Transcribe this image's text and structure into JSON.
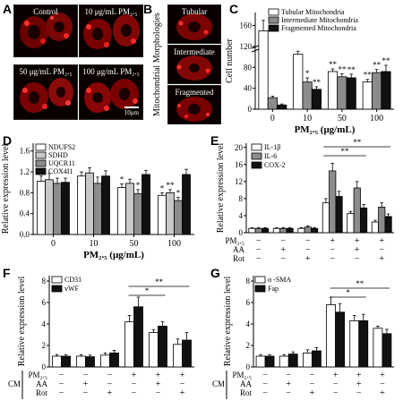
{
  "panel_letters": {
    "a": "A",
    "b": "B",
    "c": "C",
    "d": "D",
    "e": "E",
    "f": "F",
    "g": "G"
  },
  "panel_a": {
    "images": [
      "Control",
      "10 μg/mL PM₂.₅",
      "50 μg/mL PM₂.₅",
      "100 μg/mL PM₂.₅"
    ],
    "scale_bar": "10μm"
  },
  "panel_b": {
    "vertical_title": "Mitochondrial Morphologies",
    "images": [
      "Tubular",
      "Intermediate",
      "Fragmented"
    ]
  },
  "colors": {
    "white": "#ffffff",
    "gray": "#8c8c8c",
    "lightgray": "#c8c8c8",
    "black": "#111111"
  },
  "chart_data": [
    {
      "id": "C",
      "type": "bar",
      "categories": [
        "0",
        "10",
        "50",
        "100"
      ],
      "series": [
        {
          "name": "Tubular Mitochondria",
          "color": "#ffffff",
          "values": [
            150,
            105,
            72,
            52
          ],
          "errors": [
            20,
            6,
            5,
            5
          ]
        },
        {
          "name": "Intermediate Mitochondria",
          "color": "#8c8c8c",
          "values": [
            22,
            52,
            62,
            70
          ],
          "errors": [
            3,
            8,
            6,
            6
          ]
        },
        {
          "name": "Fragmented Mitochondria",
          "color": "#111111",
          "values": [
            8,
            38,
            60,
            72
          ],
          "errors": [
            2,
            5,
            7,
            12
          ]
        }
      ],
      "ylabel": "Cell number",
      "xlabel": "PM₂.₅ (μg/mL)",
      "yticks": [
        0,
        40,
        80,
        120,
        160
      ],
      "ylim": [
        0,
        185
      ],
      "legend": "top-right",
      "annotations": [
        "*",
        "**",
        "**",
        "**",
        "**",
        "**",
        "**",
        "**",
        "**"
      ]
    },
    {
      "id": "D",
      "type": "bar",
      "categories": [
        "0",
        "10",
        "50",
        "100"
      ],
      "series": [
        {
          "name": "NDUFS2",
          "color": "#ffffff",
          "values": [
            1.02,
            1.12,
            0.9,
            0.75
          ],
          "errors": [
            0.1,
            0.08,
            0.07,
            0.05
          ]
        },
        {
          "name": "SDHD",
          "color": "#c8c8c8",
          "values": [
            1.05,
            1.18,
            0.98,
            0.8
          ],
          "errors": [
            0.12,
            0.1,
            0.08,
            0.06
          ]
        },
        {
          "name": "UQCR11",
          "color": "#8c8c8c",
          "values": [
            0.98,
            0.98,
            0.78,
            0.65
          ],
          "errors": [
            0.1,
            0.12,
            0.08,
            0.06
          ]
        },
        {
          "name": "COX4I1",
          "color": "#111111",
          "values": [
            1.0,
            1.12,
            1.15,
            1.15
          ],
          "errors": [
            0.08,
            0.1,
            0.08,
            0.1
          ]
        }
      ],
      "ylabel": "Relative expression level",
      "xlabel": "PM₂.₅ (μg/mL)",
      "yticks": [
        "0.0",
        "0.4",
        "0.8",
        "1.2",
        "1.6"
      ],
      "ylim": [
        0,
        1.75
      ],
      "legend": "top-left",
      "annotations": [
        "*",
        "*",
        "*",
        "**",
        "*",
        "**"
      ]
    },
    {
      "id": "E",
      "type": "bar",
      "groups": 6,
      "series": [
        {
          "name": "IL-1β",
          "color": "#ffffff",
          "values": [
            1,
            1,
            1,
            7,
            4.5,
            2.5
          ],
          "errors": [
            0.2,
            0.2,
            0.2,
            1,
            0.5,
            0.4
          ]
        },
        {
          "name": "IL-6",
          "color": "#8c8c8c",
          "values": [
            1,
            1,
            1.3,
            14.5,
            10.5,
            6
          ],
          "errors": [
            0.2,
            0.2,
            0.3,
            1.8,
            1.5,
            1
          ]
        },
        {
          "name": "COX-2",
          "color": "#111111",
          "values": [
            1,
            1,
            1,
            8.5,
            5.8,
            3.8
          ],
          "errors": [
            0.2,
            0.2,
            0.2,
            1.2,
            0.8,
            0.6
          ]
        }
      ],
      "ylabel": "Relative expression level",
      "yticks": [
        0,
        4,
        8,
        12,
        16,
        20
      ],
      "ylim": [
        0,
        21
      ],
      "legend": "top-left",
      "rows": [
        {
          "label": "PM₂.₅",
          "values": [
            "−",
            "−",
            "−",
            "+",
            "+",
            "+"
          ]
        },
        {
          "label": "AA",
          "values": [
            "−",
            "+",
            "−",
            "−",
            "+",
            "−"
          ]
        },
        {
          "label": "Rot",
          "values": [
            "−",
            "−",
            "+",
            "−",
            "−",
            "+"
          ]
        }
      ],
      "annotations": [
        "**",
        "**"
      ]
    },
    {
      "id": "F",
      "type": "bar",
      "groups": 6,
      "series": [
        {
          "name": "CD31",
          "color": "#ffffff",
          "values": [
            1,
            1,
            1.1,
            4.2,
            3.2,
            2.1
          ],
          "errors": [
            0.15,
            0.15,
            0.2,
            0.6,
            0.25,
            0.5
          ]
        },
        {
          "name": "vWF",
          "color": "#111111",
          "values": [
            1,
            0.95,
            1.3,
            5.6,
            3.8,
            2.5
          ],
          "errors": [
            0.15,
            0.15,
            0.25,
            0.9,
            0.4,
            0.7
          ]
        }
      ],
      "ylabel": "Relative expression level",
      "yticks": [
        0,
        2,
        4,
        6,
        8
      ],
      "ylim": [
        0,
        8.5
      ],
      "legend": "top-left",
      "rows": [
        {
          "label": "PM₂.₅",
          "values": [
            "−",
            "−",
            "−",
            "+",
            "+",
            "+"
          ]
        },
        {
          "label": "AA",
          "values": [
            "−",
            "+",
            "−",
            "−",
            "+",
            "−"
          ]
        },
        {
          "label": "Rot",
          "values": [
            "−",
            "−",
            "+",
            "−",
            "−",
            "+"
          ]
        }
      ],
      "row_prefix": "CM",
      "annotations": [
        "*",
        "**"
      ]
    },
    {
      "id": "G",
      "type": "bar",
      "groups": 6,
      "series": [
        {
          "name": "α -SMA",
          "color": "#ffffff",
          "values": [
            1,
            1,
            1.3,
            5.8,
            4.3,
            3.6
          ],
          "errors": [
            0.15,
            0.15,
            0.3,
            0.7,
            0.5,
            0.2
          ]
        },
        {
          "name": "Fap",
          "color": "#111111",
          "values": [
            1,
            1.2,
            1.5,
            5.1,
            4.3,
            3.1
          ],
          "errors": [
            0.15,
            0.2,
            0.3,
            0.8,
            0.6,
            0.4
          ]
        }
      ],
      "ylabel": "Relative expression level",
      "yticks": [
        0,
        2,
        4,
        6,
        8
      ],
      "ylim": [
        0,
        8.5
      ],
      "legend": "top-left",
      "rows": [
        {
          "label": "PM₂.₅",
          "values": [
            "−",
            "−",
            "−",
            "+",
            "+",
            "+"
          ]
        },
        {
          "label": "AA",
          "values": [
            "−",
            "+",
            "−",
            "−",
            "+",
            "−"
          ]
        },
        {
          "label": "Rot",
          "values": [
            "−",
            "−",
            "+",
            "−",
            "−",
            "+"
          ]
        }
      ],
      "row_prefix": "CM",
      "annotations": [
        "*",
        "**"
      ]
    }
  ]
}
